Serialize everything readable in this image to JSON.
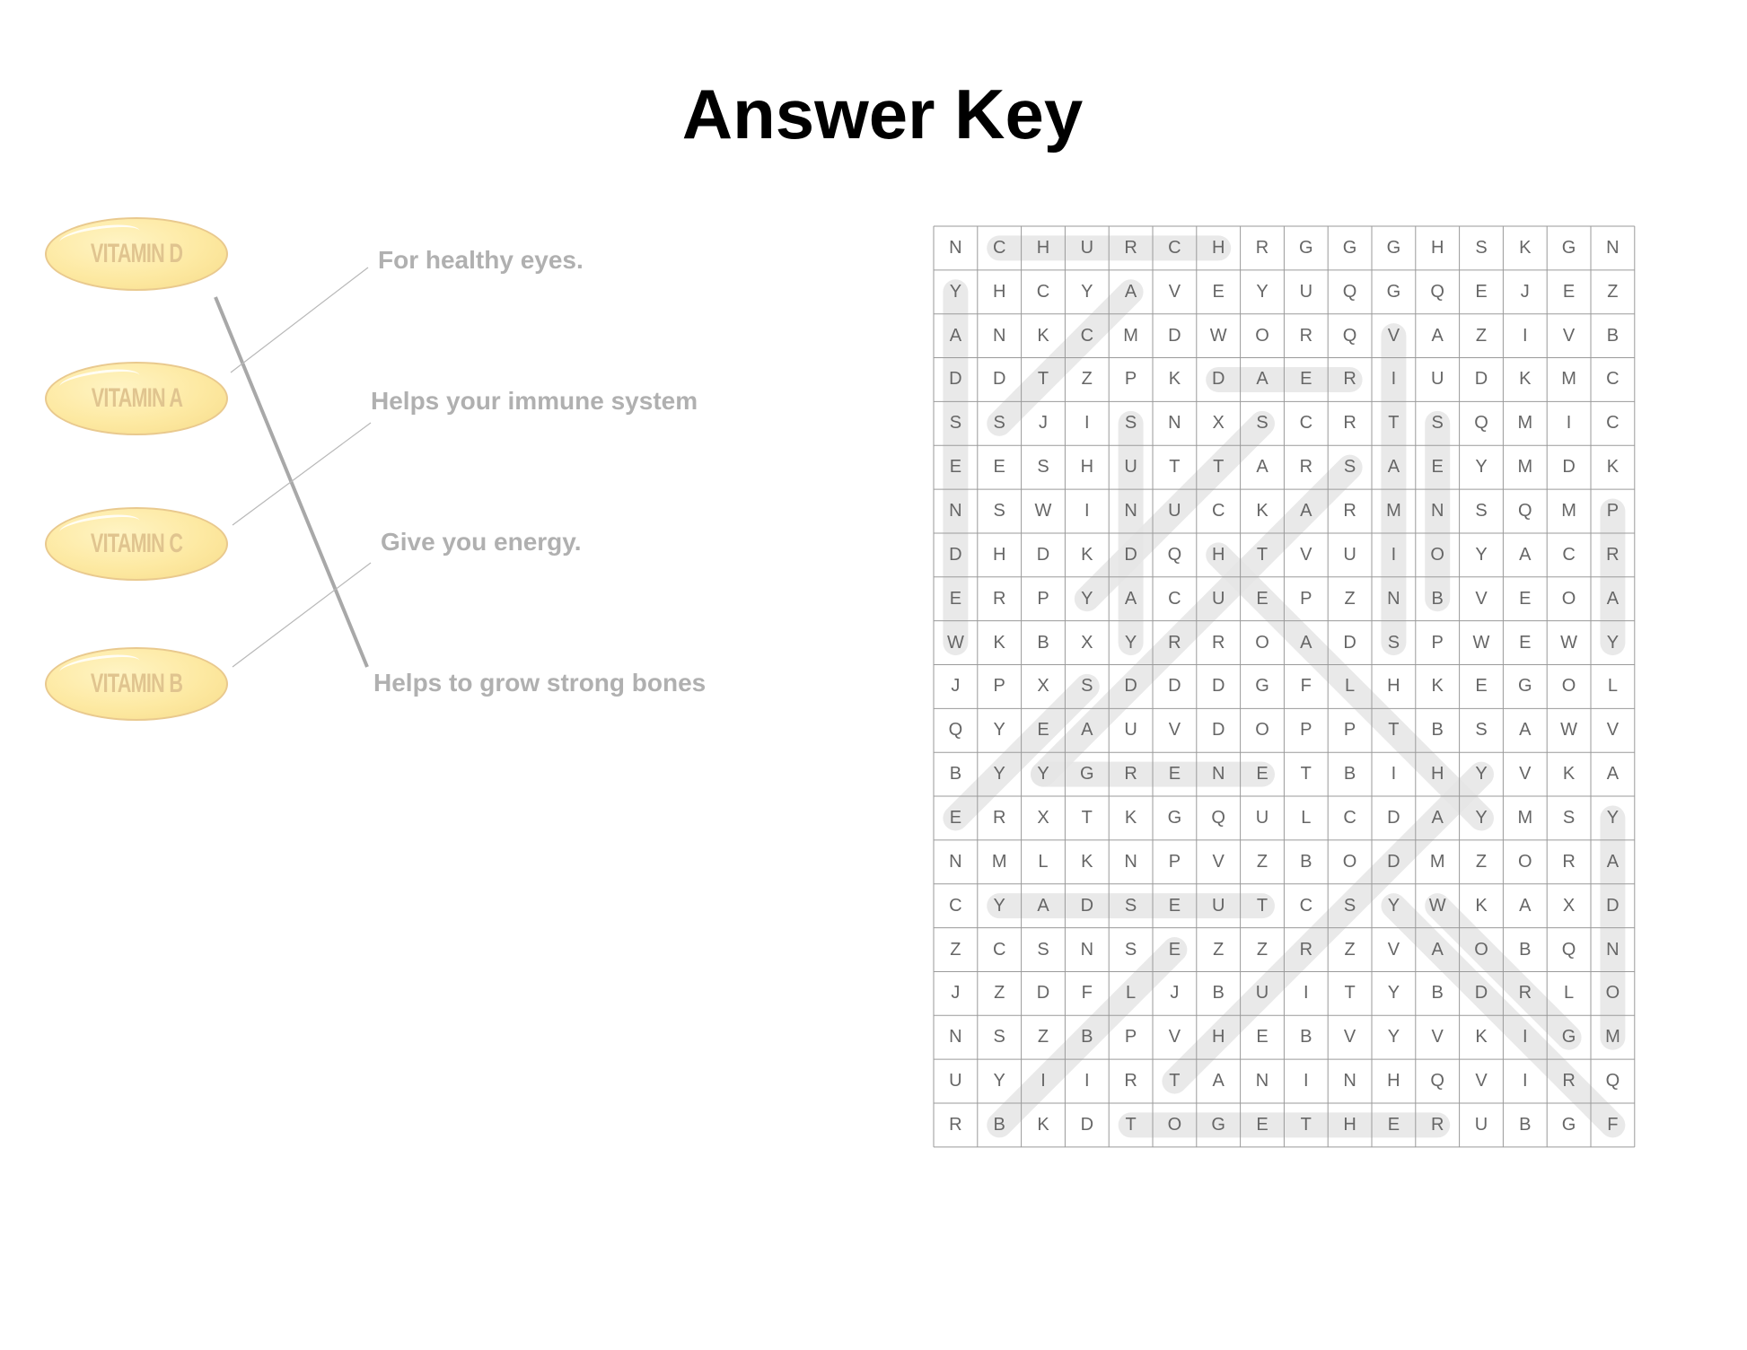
{
  "title": "Answer Key",
  "matching": {
    "vitamins": [
      "VITAMIN D",
      "VITAMIN A",
      "VITAMIN C",
      "VITAMIN B"
    ],
    "descriptions": [
      "For healthy eyes.",
      "Helps your immune system",
      "Give you energy.",
      "Helps to grow strong bones"
    ],
    "answers": [
      {
        "vitamin": "VITAMIN D",
        "description": "Helps to grow strong bones"
      },
      {
        "vitamin": "VITAMIN A",
        "description": "For healthy eyes."
      },
      {
        "vitamin": "VITAMIN C",
        "description": "Helps your immune system"
      },
      {
        "vitamin": "VITAMIN B",
        "description": "Give you energy."
      }
    ]
  },
  "word_search": {
    "rows": [
      "NCHURCHRGGGHSKGN",
      "YHCYAVEYUQGQEJEZ",
      "ANKCMDWORQVAZIVB",
      "DDTZPKDAERIUDKMC",
      "SSJISNXSCRTSQMIC",
      "EESHUTTARSAEYMDK",
      "NSWINUCKARMNSQMP",
      "DHDKDQHTVUIOYACR",
      "ERPYACUEPZNBVEOA",
      "WKBXYRROADSPWEWY",
      "JPXSDDDGFLHKEGOL",
      "QYEAUVDOPPTBSAWV",
      "BYYGRENETBIHYVKA",
      "ERXTKGQULCDAYMSY",
      "NMLKNPVZBODMZORA",
      "CYADSEUTCSYWKAXD",
      "ZCSNSEZZRZVAOBQN",
      "JZDFLJBUITYBDRLO",
      "NSZBPVHEBVYVKIGM",
      "UYIIRTANINHQVIRQ",
      "RBKDTOGETHERUBGF"
    ],
    "found_words": [
      {
        "word": "CHURCH",
        "from": [
          0,
          1
        ],
        "to": [
          0,
          6
        ]
      },
      {
        "word": "WEDNESDAY",
        "from": [
          1,
          0
        ],
        "to": [
          9,
          0
        ]
      },
      {
        "word": "ACTS",
        "from": [
          1,
          4
        ],
        "to": [
          4,
          1
        ]
      },
      {
        "word": "READ",
        "from": [
          3,
          6
        ],
        "to": [
          3,
          9
        ]
      },
      {
        "word": "VITAMINS",
        "from": [
          2,
          10
        ],
        "to": [
          9,
          10
        ]
      },
      {
        "word": "SUNDAY",
        "from": [
          4,
          4
        ],
        "to": [
          9,
          4
        ]
      },
      {
        "word": "BONES",
        "from": [
          4,
          11
        ],
        "to": [
          8,
          11
        ]
      },
      {
        "word": "STUDY",
        "from": [
          4,
          7
        ],
        "to": [
          8,
          3
        ]
      },
      {
        "word": "SATURDAY",
        "from": [
          5,
          9
        ],
        "to": [
          12,
          2
        ]
      },
      {
        "word": "PRAY",
        "from": [
          6,
          15
        ],
        "to": [
          9,
          15
        ]
      },
      {
        "word": "HEALTHY",
        "from": [
          7,
          6
        ],
        "to": [
          13,
          12
        ]
      },
      {
        "word": "EYES",
        "from": [
          10,
          3
        ],
        "to": [
          13,
          0
        ]
      },
      {
        "word": "ENERGY",
        "from": [
          12,
          2
        ],
        "to": [
          12,
          7
        ]
      },
      {
        "word": "THURSDAY",
        "from": [
          12,
          12
        ],
        "to": [
          19,
          5
        ]
      },
      {
        "word": "MONDAY",
        "from": [
          13,
          15
        ],
        "to": [
          18,
          15
        ]
      },
      {
        "word": "TUESDAY",
        "from": [
          15,
          1
        ],
        "to": [
          15,
          7
        ]
      },
      {
        "word": "FRIDAY",
        "from": [
          15,
          10
        ],
        "to": [
          20,
          15
        ]
      },
      {
        "word": "GROW",
        "from": [
          15,
          11
        ],
        "to": [
          18,
          14
        ]
      },
      {
        "word": "BIBLE",
        "from": [
          16,
          5
        ],
        "to": [
          20,
          1
        ]
      },
      {
        "word": "TOGETHER",
        "from": [
          20,
          4
        ],
        "to": [
          20,
          11
        ]
      }
    ],
    "highlight_color": "#e6e6e6",
    "letter_color": "#666666",
    "grid_line_color": "#9a9a9a"
  }
}
